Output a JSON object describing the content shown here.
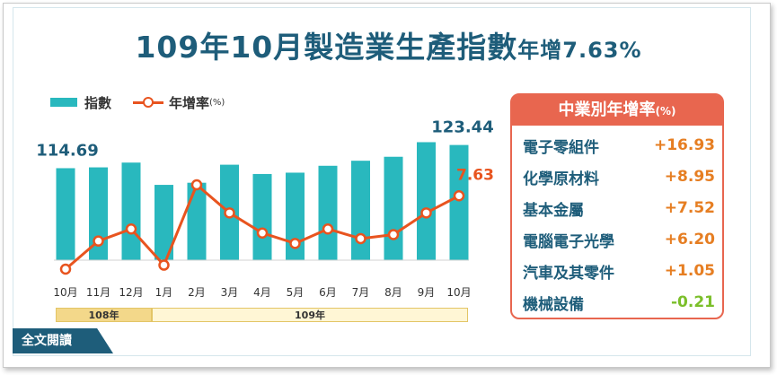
{
  "title": {
    "prefix": "109年10月",
    "main": "製造業生產指數",
    "suffix": "年增7.63%"
  },
  "legend": {
    "bar_label": "指數",
    "line_label": "年增率",
    "line_unit": "(%)"
  },
  "chart_data": {
    "type": "bar",
    "categories": [
      "10月",
      "11月",
      "12月",
      "1月",
      "2月",
      "3月",
      "4月",
      "5月",
      "6月",
      "7月",
      "8月",
      "9月",
      "10月"
    ],
    "series": [
      {
        "name": "指數",
        "type": "bar",
        "values": [
          114.69,
          115.0,
          116.8,
          108.4,
          109.2,
          116.0,
          112.5,
          113.0,
          115.6,
          117.5,
          119.0,
          124.5,
          123.44
        ]
      },
      {
        "name": "年增率",
        "type": "line",
        "values": [
          -1.5,
          2.0,
          3.5,
          -1.0,
          9.0,
          5.5,
          3.0,
          1.7,
          3.5,
          2.3,
          2.8,
          5.5,
          7.63
        ]
      }
    ],
    "data_labels": [
      {
        "series": "指數",
        "index": 0,
        "text": "114.69"
      },
      {
        "series": "指數",
        "index": 12,
        "text": "123.44"
      },
      {
        "series": "年增率",
        "index": 12,
        "text": "7.63"
      }
    ],
    "year_groups": [
      {
        "label": "108年",
        "from": 0,
        "to": 2
      },
      {
        "label": "109年",
        "from": 3,
        "to": 12
      }
    ],
    "colors": {
      "bar": "#29b8be",
      "line": "#e8541f"
    }
  },
  "industry_panel": {
    "title": "中業別年增率",
    "unit": "(%)",
    "rows": [
      {
        "name": "電子零組件",
        "value": "+16.93"
      },
      {
        "name": "化學原材料",
        "value": "+8.95"
      },
      {
        "name": "基本金屬",
        "value": "+7.52"
      },
      {
        "name": "電腦電子光學",
        "value": "+6.20"
      },
      {
        "name": "汽車及其零件",
        "value": "+1.05"
      },
      {
        "name": "機械設備",
        "value": "-0.21"
      }
    ]
  },
  "read_button": "全文閱讀",
  "colors": {
    "title": "#1e5d7a",
    "accent": "#e8664f",
    "positive": "#e67e22",
    "negative": "#7bbf2a"
  }
}
